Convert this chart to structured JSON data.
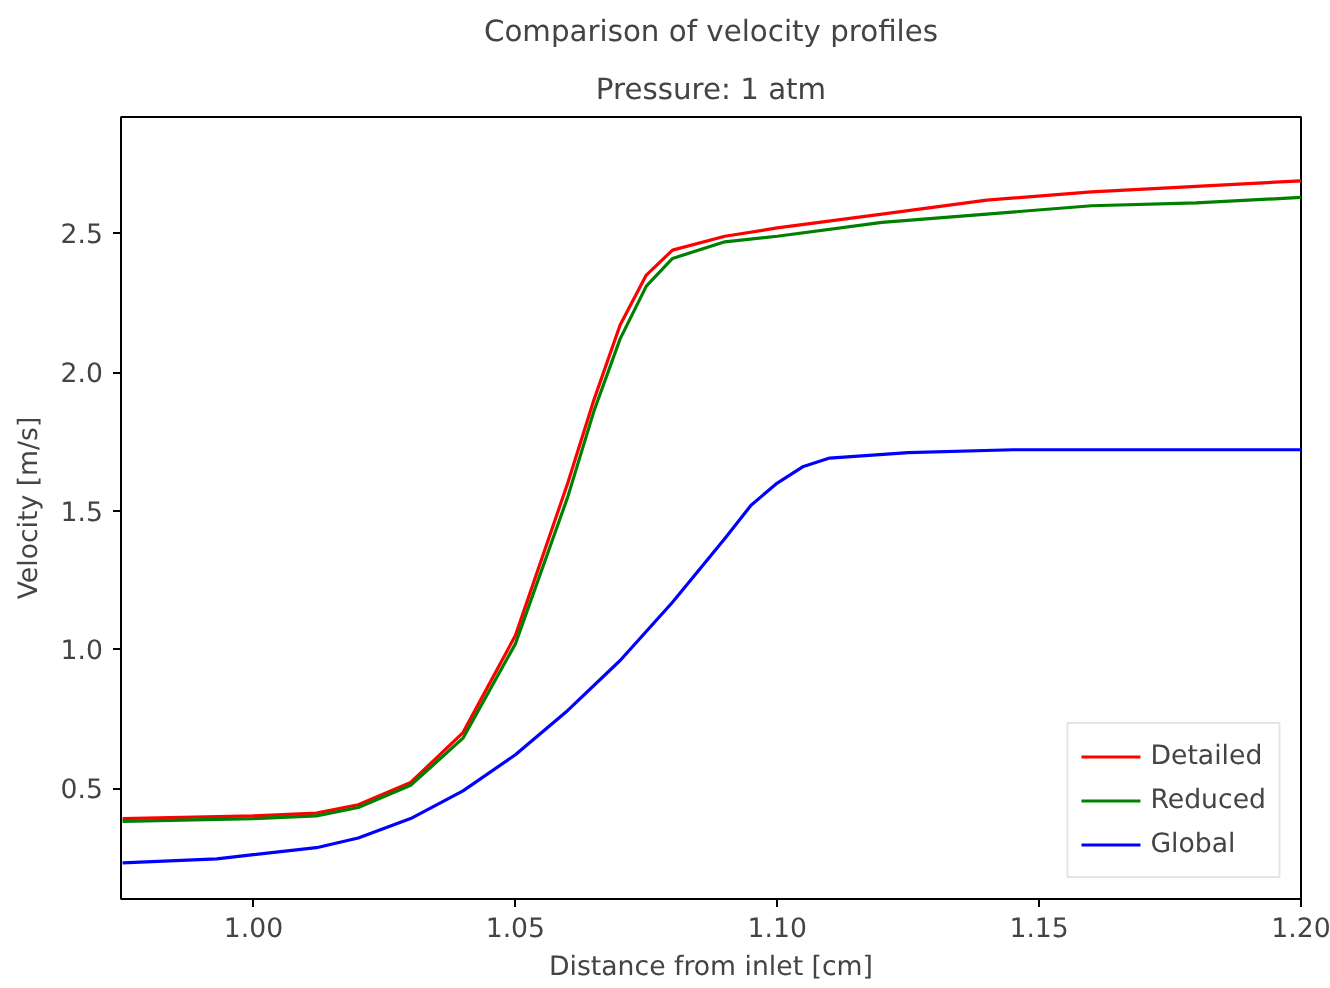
{
  "chart_data": {
    "type": "line",
    "title": "Comparison of velocity profiles",
    "subtitle": "Pressure: 1 atm",
    "xlabel": "Distance from inlet [cm]",
    "ylabel": "Velocity [m/s]",
    "xlim": [
      0.9747,
      1.2
    ],
    "ylim": [
      0.1,
      2.92
    ],
    "xticks": [
      {
        "value": 1.0,
        "label": "1.00"
      },
      1.05,
      {
        "value": 1.1,
        "label": "1.10"
      },
      1.15,
      {
        "value": 1.2,
        "label": "1.20"
      }
    ],
    "yticks": [
      0.5,
      {
        "value": 1,
        "label": "1.0"
      },
      1.5,
      {
        "value": 2,
        "label": "2.0"
      },
      2.5
    ],
    "grid": false,
    "legend": "bottom right",
    "line_style": "solid",
    "marker": "none",
    "x": [
      0.975,
      1.0,
      1.012,
      1.02,
      1.03,
      1.04,
      1.05,
      1.06,
      1.065,
      1.07,
      1.075,
      1.08,
      1.09,
      1.1,
      1.12,
      1.14,
      1.16,
      1.18,
      1.2
    ],
    "series": [
      {
        "name": "Detailed",
        "color": "#ff0000",
        "values": [
          0.39,
          0.4,
          0.41,
          0.44,
          0.52,
          0.7,
          1.05,
          1.6,
          1.9,
          2.17,
          2.35,
          2.44,
          2.49,
          2.52,
          2.57,
          2.62,
          2.65,
          2.67,
          2.69
        ]
      },
      {
        "name": "Reduced",
        "color": "#008000",
        "values": [
          0.38,
          0.39,
          0.4,
          0.43,
          0.51,
          0.68,
          1.02,
          1.55,
          1.86,
          2.12,
          2.31,
          2.41,
          2.47,
          2.49,
          2.54,
          2.57,
          2.6,
          2.61,
          2.63
        ]
      },
      {
        "name": "Global",
        "color": "#0000ff",
        "x": [
          0.975,
          0.993,
          1.0,
          1.012,
          1.02,
          1.03,
          1.04,
          1.05,
          1.06,
          1.07,
          1.08,
          1.09,
          1.095,
          1.1,
          1.105,
          1.11,
          1.125,
          1.145,
          1.2
        ],
        "values": [
          0.23,
          0.245,
          0.26,
          0.285,
          0.32,
          0.39,
          0.49,
          0.62,
          0.78,
          0.96,
          1.17,
          1.4,
          1.52,
          1.6,
          1.66,
          1.69,
          1.71,
          1.72,
          1.72
        ]
      }
    ]
  }
}
